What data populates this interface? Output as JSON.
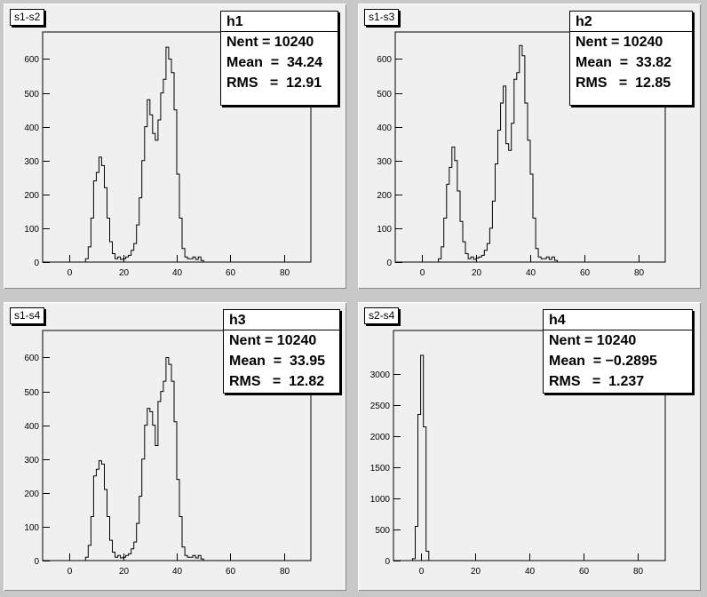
{
  "window": {
    "background": "#c8c8c8",
    "pad_background": "#f0f0f0"
  },
  "pads": [
    {
      "title": "s1-s2",
      "stats": {
        "name": "h1",
        "rows": [
          "Nent = 10240",
          "Mean  =  34.24",
          "RMS   =  12.91"
        ]
      }
    },
    {
      "title": "s1-s3",
      "stats": {
        "name": "h2",
        "rows": [
          "Nent = 10240",
          "Mean  =  33.82",
          "RMS   =  12.85"
        ]
      }
    },
    {
      "title": "s1-s4",
      "stats": {
        "name": "h3",
        "rows": [
          "Nent = 10240",
          "Mean  =  33.95",
          "RMS   =  12.82"
        ]
      }
    },
    {
      "title": "s2-s4",
      "stats": {
        "name": "h4",
        "rows": [
          "Nent = 10240",
          "Mean  = −0.2895",
          "RMS   =  1.237"
        ]
      }
    }
  ],
  "chart_data": [
    {
      "type": "histogram",
      "title": "s1-s2",
      "series_name": "h1",
      "xlim": [
        -10,
        90
      ],
      "ylim": [
        0,
        680
      ],
      "x_ticks": [
        0,
        20,
        40,
        60,
        80
      ],
      "x_tick_labels": [
        "0",
        "20",
        "40",
        "60",
        "80"
      ],
      "y_ticks": [
        0,
        100,
        200,
        300,
        400,
        500,
        600
      ],
      "y_tick_labels": [
        "0",
        "100",
        "200",
        "300",
        "400",
        "500",
        "600"
      ],
      "bin_x": [
        [
          2,
          6
        ],
        [
          6,
          7
        ],
        [
          7,
          8
        ],
        [
          8,
          9
        ],
        [
          9,
          10
        ],
        [
          10,
          11
        ],
        [
          11,
          12
        ],
        [
          12,
          13
        ],
        [
          13,
          14
        ],
        [
          14,
          15
        ],
        [
          15,
          16
        ],
        [
          16,
          17
        ],
        [
          17,
          18
        ],
        [
          18,
          19
        ],
        [
          19,
          20
        ],
        [
          20,
          21
        ],
        [
          21,
          22
        ],
        [
          22,
          23
        ],
        [
          23,
          24
        ],
        [
          24,
          25
        ],
        [
          25,
          26
        ],
        [
          26,
          27
        ],
        [
          27,
          28
        ],
        [
          28,
          29
        ],
        [
          29,
          30
        ],
        [
          30,
          31
        ],
        [
          31,
          32
        ],
        [
          32,
          33
        ],
        [
          33,
          34
        ],
        [
          34,
          35
        ],
        [
          35,
          36
        ],
        [
          36,
          37
        ],
        [
          37,
          38
        ],
        [
          38,
          39
        ],
        [
          39,
          40
        ],
        [
          40,
          41
        ],
        [
          41,
          42
        ],
        [
          42,
          43
        ],
        [
          43,
          44
        ],
        [
          44,
          45
        ],
        [
          45,
          46
        ],
        [
          46,
          47
        ],
        [
          47,
          48
        ],
        [
          48,
          49
        ],
        [
          49,
          50
        ],
        [
          50,
          52
        ],
        [
          52,
          55
        ],
        [
          55,
          58
        ],
        [
          58,
          60
        ],
        [
          60,
          63
        ]
      ],
      "counts": [
        0,
        10,
        45,
        130,
        240,
        265,
        310,
        285,
        220,
        130,
        60,
        25,
        10,
        15,
        8,
        10,
        15,
        20,
        35,
        55,
        110,
        190,
        300,
        400,
        480,
        435,
        380,
        360,
        420,
        500,
        540,
        635,
        600,
        560,
        450,
        260,
        130,
        40,
        15,
        10,
        10,
        15,
        8,
        15,
        5,
        0,
        0,
        0,
        0,
        0
      ]
    },
    {
      "type": "histogram",
      "title": "s1-s3",
      "series_name": "h2",
      "xlim": [
        -10,
        90
      ],
      "ylim": [
        0,
        680
      ],
      "x_ticks": [
        0,
        20,
        40,
        60,
        80
      ],
      "x_tick_labels": [
        "0",
        "20",
        "40",
        "60",
        "80"
      ],
      "y_ticks": [
        0,
        100,
        200,
        300,
        400,
        500,
        600
      ],
      "y_tick_labels": [
        "0",
        "100",
        "200",
        "300",
        "400",
        "500",
        "600"
      ],
      "bin_x": [
        [
          2,
          6
        ],
        [
          6,
          7
        ],
        [
          7,
          8
        ],
        [
          8,
          9
        ],
        [
          9,
          10
        ],
        [
          10,
          11
        ],
        [
          11,
          12
        ],
        [
          12,
          13
        ],
        [
          13,
          14
        ],
        [
          14,
          15
        ],
        [
          15,
          16
        ],
        [
          16,
          17
        ],
        [
          17,
          18
        ],
        [
          18,
          19
        ],
        [
          19,
          20
        ],
        [
          20,
          21
        ],
        [
          21,
          22
        ],
        [
          22,
          23
        ],
        [
          23,
          24
        ],
        [
          24,
          25
        ],
        [
          25,
          26
        ],
        [
          26,
          27
        ],
        [
          27,
          28
        ],
        [
          28,
          29
        ],
        [
          29,
          30
        ],
        [
          30,
          31
        ],
        [
          31,
          32
        ],
        [
          32,
          33
        ],
        [
          33,
          34
        ],
        [
          34,
          35
        ],
        [
          35,
          36
        ],
        [
          36,
          37
        ],
        [
          37,
          38
        ],
        [
          38,
          39
        ],
        [
          39,
          40
        ],
        [
          40,
          41
        ],
        [
          41,
          42
        ],
        [
          42,
          43
        ],
        [
          43,
          44
        ],
        [
          44,
          45
        ],
        [
          45,
          46
        ],
        [
          46,
          47
        ],
        [
          47,
          48
        ],
        [
          48,
          49
        ],
        [
          49,
          50
        ],
        [
          50,
          52
        ],
        [
          52,
          55
        ],
        [
          55,
          58
        ],
        [
          58,
          60
        ],
        [
          60,
          63
        ]
      ],
      "counts": [
        0,
        10,
        45,
        130,
        230,
        280,
        340,
        300,
        210,
        120,
        60,
        25,
        10,
        15,
        8,
        12,
        15,
        20,
        35,
        55,
        100,
        180,
        290,
        390,
        470,
        520,
        350,
        330,
        410,
        540,
        560,
        640,
        610,
        470,
        360,
        260,
        130,
        40,
        15,
        10,
        10,
        15,
        8,
        15,
        5,
        0,
        0,
        0,
        0,
        0
      ]
    },
    {
      "type": "histogram",
      "title": "s1-s4",
      "series_name": "h3",
      "xlim": [
        -10,
        90
      ],
      "ylim": [
        0,
        680
      ],
      "x_ticks": [
        0,
        20,
        40,
        60,
        80
      ],
      "x_tick_labels": [
        "0",
        "20",
        "40",
        "60",
        "80"
      ],
      "y_ticks": [
        0,
        100,
        200,
        300,
        400,
        500,
        600
      ],
      "y_tick_labels": [
        "0",
        "100",
        "200",
        "300",
        "400",
        "500",
        "600"
      ],
      "bin_x": [
        [
          2,
          6
        ],
        [
          6,
          7
        ],
        [
          7,
          8
        ],
        [
          8,
          9
        ],
        [
          9,
          10
        ],
        [
          10,
          11
        ],
        [
          11,
          12
        ],
        [
          12,
          13
        ],
        [
          13,
          14
        ],
        [
          14,
          15
        ],
        [
          15,
          16
        ],
        [
          16,
          17
        ],
        [
          17,
          18
        ],
        [
          18,
          19
        ],
        [
          19,
          20
        ],
        [
          20,
          21
        ],
        [
          21,
          22
        ],
        [
          22,
          23
        ],
        [
          23,
          24
        ],
        [
          24,
          25
        ],
        [
          25,
          26
        ],
        [
          26,
          27
        ],
        [
          27,
          28
        ],
        [
          28,
          29
        ],
        [
          29,
          30
        ],
        [
          30,
          31
        ],
        [
          31,
          32
        ],
        [
          32,
          33
        ],
        [
          33,
          34
        ],
        [
          34,
          35
        ],
        [
          35,
          36
        ],
        [
          36,
          37
        ],
        [
          37,
          38
        ],
        [
          38,
          39
        ],
        [
          39,
          40
        ],
        [
          40,
          41
        ],
        [
          41,
          42
        ],
        [
          42,
          43
        ],
        [
          43,
          44
        ],
        [
          44,
          45
        ],
        [
          45,
          46
        ],
        [
          46,
          47
        ],
        [
          47,
          48
        ],
        [
          48,
          49
        ],
        [
          49,
          50
        ],
        [
          50,
          52
        ],
        [
          52,
          55
        ],
        [
          55,
          58
        ],
        [
          58,
          60
        ],
        [
          60,
          63
        ]
      ],
      "counts": [
        0,
        10,
        45,
        130,
        250,
        270,
        295,
        285,
        210,
        130,
        60,
        25,
        10,
        15,
        8,
        10,
        15,
        20,
        35,
        55,
        110,
        190,
        300,
        400,
        450,
        440,
        400,
        340,
        470,
        500,
        530,
        600,
        580,
        530,
        410,
        240,
        130,
        40,
        15,
        10,
        10,
        15,
        8,
        15,
        5,
        0,
        0,
        0,
        0,
        0
      ]
    },
    {
      "type": "histogram",
      "title": "s2-s4",
      "series_name": "h4",
      "xlim": [
        -10,
        90
      ],
      "ylim": [
        0,
        3700
      ],
      "x_ticks": [
        0,
        20,
        40,
        60,
        80
      ],
      "x_tick_labels": [
        "0",
        "20",
        "40",
        "60",
        "80"
      ],
      "y_ticks": [
        0,
        500,
        1000,
        1500,
        2000,
        2500,
        3000
      ],
      "y_tick_labels": [
        "0",
        "500",
        "1000",
        "1500",
        "2000",
        "2500",
        "3000"
      ],
      "bin_x": [
        [
          -3,
          -2
        ],
        [
          -2,
          -1
        ],
        [
          -1,
          0
        ],
        [
          0,
          1
        ],
        [
          1,
          2
        ],
        [
          2,
          3
        ]
      ],
      "counts": [
        30,
        550,
        2350,
        3300,
        2150,
        150
      ]
    }
  ]
}
